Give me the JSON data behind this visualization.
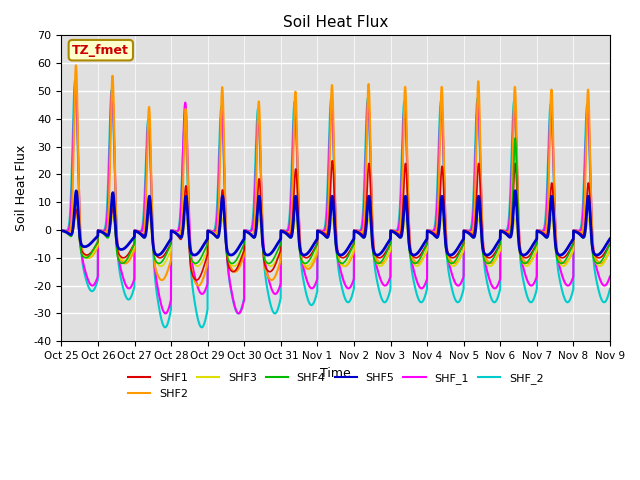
{
  "title": "Soil Heat Flux",
  "xlabel": "Time",
  "ylabel": "Soil Heat Flux",
  "ylim": [
    -40,
    70
  ],
  "yticks": [
    -40,
    -30,
    -20,
    -10,
    0,
    10,
    20,
    30,
    40,
    50,
    60,
    70
  ],
  "plot_bg_color": "#e0e0e0",
  "grid_color": "white",
  "series": {
    "SHF1": {
      "color": "#dd0000",
      "lw": 1.2
    },
    "SHF2": {
      "color": "#ff9900",
      "lw": 1.5
    },
    "SHF3": {
      "color": "#dddd00",
      "lw": 1.2
    },
    "SHF4": {
      "color": "#00bb00",
      "lw": 1.2
    },
    "SHF5": {
      "color": "#0000cc",
      "lw": 2.0
    },
    "SHF_1": {
      "color": "#ff00ff",
      "lw": 1.5
    },
    "SHF_2": {
      "color": "#00cccc",
      "lw": 1.5
    }
  },
  "annotation_text": "TZ_fmet",
  "annotation_color": "#cc0000",
  "annotation_bg": "#ffffcc",
  "annotation_border": "#aa8800",
  "num_days": 15,
  "tick_labels": [
    "Oct 25",
    "Oct 26",
    "Oct 27",
    "Oct 28",
    "Oct 29",
    "Oct 30",
    "Oct 31",
    "Nov 1",
    "Nov 2",
    "Nov 3",
    "Nov 4",
    "Nov 5",
    "Nov 6",
    "Nov 7",
    "Nov 8",
    "Nov 9"
  ],
  "day_peaks_SHF2": [
    63,
    60,
    51,
    51,
    57,
    53,
    55,
    57,
    57,
    56,
    56,
    58,
    56,
    55,
    55
  ],
  "day_peaks_SHF_2": [
    58,
    55,
    46,
    45,
    50,
    49,
    51,
    52,
    52,
    51,
    51,
    52,
    51,
    50,
    50
  ],
  "day_peaks_SHF_1": [
    57,
    54,
    45,
    50,
    49,
    45,
    48,
    50,
    50,
    49,
    49,
    50,
    48,
    48,
    48
  ],
  "day_peaks_SHF5": [
    18,
    18,
    18,
    18,
    18,
    18,
    18,
    18,
    18,
    18,
    18,
    18,
    20,
    18,
    18
  ],
  "day_peaks_SHF4": [
    18,
    18,
    18,
    18,
    18,
    18,
    18,
    18,
    18,
    18,
    18,
    18,
    40,
    18,
    18
  ],
  "day_peaks_SHF1": [
    12,
    13,
    12,
    25,
    22,
    26,
    27,
    30,
    29,
    29,
    28,
    29,
    29,
    22,
    22
  ],
  "day_peaks_SHF3": [
    10,
    10,
    10,
    10,
    10,
    10,
    10,
    10,
    10,
    10,
    10,
    10,
    10,
    10,
    10
  ],
  "day_troughs_SHF5": [
    -6,
    -7,
    -9,
    -9,
    -9,
    -9,
    -9,
    -9,
    -9,
    -9,
    -9,
    -9,
    -9,
    -9,
    -9
  ],
  "day_troughs_SHF4": [
    -10,
    -12,
    -12,
    -12,
    -12,
    -12,
    -12,
    -12,
    -12,
    -12,
    -12,
    -12,
    -12,
    -12,
    -12
  ],
  "day_troughs_SHF1": [
    -9,
    -10,
    -10,
    -18,
    -15,
    -15,
    -10,
    -10,
    -10,
    -10,
    -10,
    -10,
    -10,
    -10,
    -10
  ],
  "day_troughs_SHF3": [
    -10,
    -11,
    -13,
    -13,
    -13,
    -13,
    -13,
    -13,
    -13,
    -13,
    -13,
    -13,
    -13,
    -13,
    -13
  ],
  "day_troughs_SHF2": [
    -10,
    -12,
    -18,
    -20,
    -15,
    -18,
    -14,
    -13,
    -12,
    -12,
    -12,
    -12,
    -12,
    -12,
    -12
  ],
  "day_troughs_SHF_1": [
    -20,
    -21,
    -30,
    -23,
    -30,
    -23,
    -21,
    -21,
    -20,
    -21,
    -20,
    -21,
    -20,
    -20,
    -20
  ],
  "day_troughs_SHF_2": [
    -22,
    -25,
    -35,
    -35,
    -30,
    -30,
    -27,
    -26,
    -26,
    -26,
    -26,
    -26,
    -26,
    -26,
    -26
  ]
}
